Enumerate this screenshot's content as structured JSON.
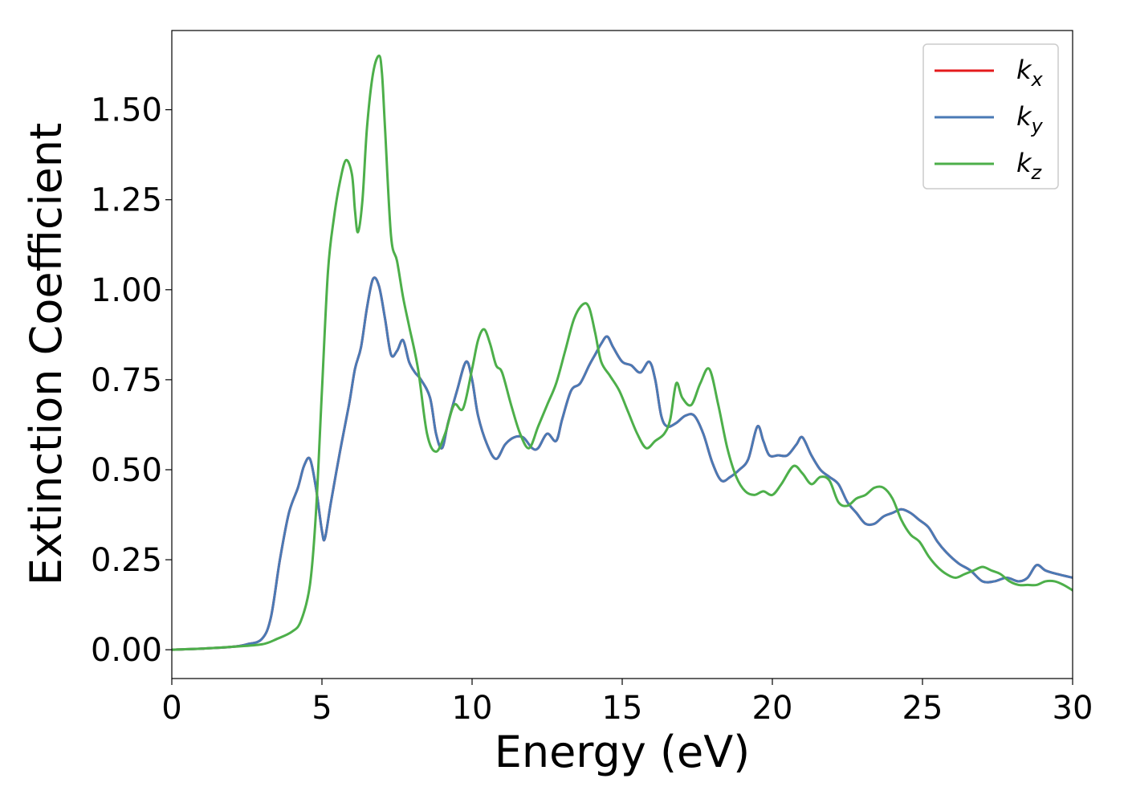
{
  "chart_data": {
    "type": "line",
    "xlabel": "Energy (eV)",
    "ylabel": "Extinction Coefficient",
    "xlim": [
      0,
      30
    ],
    "ylim": [
      -0.08,
      1.72
    ],
    "xticks": [
      "0",
      "5",
      "10",
      "15",
      "20",
      "25",
      "30"
    ],
    "yticks": [
      "0.00",
      "0.25",
      "0.50",
      "0.75",
      "1.00",
      "1.25",
      "1.50"
    ],
    "grid": false,
    "legend_position": "top-right",
    "series": [
      {
        "name": "k_x",
        "label_base": "k",
        "label_sub": "x",
        "color": "#e41a1c",
        "x": [
          0,
          1,
          2,
          2.5,
          3,
          3.3,
          3.6,
          3.9,
          4.2,
          4.4,
          4.6,
          4.8,
          5.0,
          5.1,
          5.3,
          5.6,
          5.9,
          6.1,
          6.3,
          6.5,
          6.7,
          6.9,
          7.1,
          7.3,
          7.5,
          7.7,
          7.9,
          8.1,
          8.3,
          8.6,
          8.8,
          9.0,
          9.2,
          9.5,
          9.8,
          10.0,
          10.2,
          10.5,
          10.8,
          11.1,
          11.4,
          11.7,
          12.0,
          12.2,
          12.5,
          12.8,
          13.0,
          13.3,
          13.6,
          13.9,
          14.1,
          14.3,
          14.5,
          14.7,
          15.0,
          15.3,
          15.6,
          15.9,
          16.1,
          16.3,
          16.5,
          16.8,
          17.1,
          17.4,
          17.7,
          18.0,
          18.3,
          18.6,
          18.9,
          19.2,
          19.5,
          19.7,
          19.9,
          20.2,
          20.5,
          20.8,
          21.0,
          21.3,
          21.6,
          21.9,
          22.2,
          22.5,
          22.8,
          23.1,
          23.4,
          23.7,
          24.0,
          24.3,
          24.6,
          24.9,
          25.2,
          25.5,
          25.8,
          26.2,
          26.6,
          27.0,
          27.4,
          27.8,
          28.2,
          28.5,
          28.8,
          29.1,
          29.5,
          30.0
        ],
        "values": [
          0.0,
          0.003,
          0.008,
          0.015,
          0.03,
          0.09,
          0.25,
          0.38,
          0.45,
          0.51,
          0.53,
          0.45,
          0.33,
          0.31,
          0.41,
          0.55,
          0.68,
          0.78,
          0.84,
          0.95,
          1.03,
          1.01,
          0.92,
          0.82,
          0.83,
          0.86,
          0.8,
          0.77,
          0.75,
          0.7,
          0.6,
          0.56,
          0.63,
          0.72,
          0.8,
          0.75,
          0.65,
          0.57,
          0.53,
          0.57,
          0.59,
          0.59,
          0.56,
          0.56,
          0.6,
          0.58,
          0.64,
          0.72,
          0.74,
          0.79,
          0.82,
          0.85,
          0.87,
          0.84,
          0.8,
          0.79,
          0.77,
          0.8,
          0.75,
          0.65,
          0.62,
          0.63,
          0.65,
          0.65,
          0.6,
          0.52,
          0.47,
          0.48,
          0.5,
          0.53,
          0.62,
          0.58,
          0.54,
          0.54,
          0.54,
          0.57,
          0.59,
          0.54,
          0.5,
          0.48,
          0.46,
          0.41,
          0.38,
          0.35,
          0.35,
          0.37,
          0.38,
          0.39,
          0.38,
          0.36,
          0.34,
          0.3,
          0.27,
          0.24,
          0.22,
          0.19,
          0.19,
          0.2,
          0.19,
          0.2,
          0.235,
          0.22,
          0.21,
          0.2
        ]
      },
      {
        "name": "k_y",
        "label_base": "k",
        "label_sub": "y",
        "color": "#4a7ab5",
        "x": [
          0,
          1,
          2,
          2.5,
          3,
          3.3,
          3.6,
          3.9,
          4.2,
          4.4,
          4.6,
          4.8,
          5.0,
          5.1,
          5.3,
          5.6,
          5.9,
          6.1,
          6.3,
          6.5,
          6.7,
          6.9,
          7.1,
          7.3,
          7.5,
          7.7,
          7.9,
          8.1,
          8.3,
          8.6,
          8.8,
          9.0,
          9.2,
          9.5,
          9.8,
          10.0,
          10.2,
          10.5,
          10.8,
          11.1,
          11.4,
          11.7,
          12.0,
          12.2,
          12.5,
          12.8,
          13.0,
          13.3,
          13.6,
          13.9,
          14.1,
          14.3,
          14.5,
          14.7,
          15.0,
          15.3,
          15.6,
          15.9,
          16.1,
          16.3,
          16.5,
          16.8,
          17.1,
          17.4,
          17.7,
          18.0,
          18.3,
          18.6,
          18.9,
          19.2,
          19.5,
          19.7,
          19.9,
          20.2,
          20.5,
          20.8,
          21.0,
          21.3,
          21.6,
          21.9,
          22.2,
          22.5,
          22.8,
          23.1,
          23.4,
          23.7,
          24.0,
          24.3,
          24.6,
          24.9,
          25.2,
          25.5,
          25.8,
          26.2,
          26.6,
          27.0,
          27.4,
          27.8,
          28.2,
          28.5,
          28.8,
          29.1,
          29.5,
          30.0
        ],
        "values": [
          0.0,
          0.003,
          0.008,
          0.015,
          0.03,
          0.09,
          0.25,
          0.38,
          0.45,
          0.51,
          0.53,
          0.45,
          0.33,
          0.31,
          0.41,
          0.55,
          0.68,
          0.78,
          0.84,
          0.95,
          1.03,
          1.01,
          0.92,
          0.82,
          0.83,
          0.86,
          0.8,
          0.77,
          0.75,
          0.7,
          0.6,
          0.56,
          0.63,
          0.72,
          0.8,
          0.75,
          0.65,
          0.57,
          0.53,
          0.57,
          0.59,
          0.59,
          0.56,
          0.56,
          0.6,
          0.58,
          0.64,
          0.72,
          0.74,
          0.79,
          0.82,
          0.85,
          0.87,
          0.84,
          0.8,
          0.79,
          0.77,
          0.8,
          0.75,
          0.65,
          0.62,
          0.63,
          0.65,
          0.65,
          0.6,
          0.52,
          0.47,
          0.48,
          0.5,
          0.53,
          0.62,
          0.58,
          0.54,
          0.54,
          0.54,
          0.57,
          0.59,
          0.54,
          0.5,
          0.48,
          0.46,
          0.41,
          0.38,
          0.35,
          0.35,
          0.37,
          0.38,
          0.39,
          0.38,
          0.36,
          0.34,
          0.3,
          0.27,
          0.24,
          0.22,
          0.19,
          0.19,
          0.2,
          0.19,
          0.2,
          0.235,
          0.22,
          0.21,
          0.2
        ]
      },
      {
        "name": "k_z",
        "label_base": "k",
        "label_sub": "z",
        "color": "#4daf4a",
        "x": [
          0,
          1,
          2,
          3,
          3.5,
          4.0,
          4.3,
          4.6,
          4.8,
          5.0,
          5.2,
          5.4,
          5.6,
          5.8,
          6.0,
          6.1,
          6.2,
          6.35,
          6.5,
          6.7,
          6.9,
          7.0,
          7.1,
          7.3,
          7.5,
          7.7,
          7.9,
          8.2,
          8.5,
          8.8,
          9.1,
          9.4,
          9.7,
          10.0,
          10.2,
          10.4,
          10.6,
          10.8,
          11.0,
          11.3,
          11.6,
          11.9,
          12.2,
          12.5,
          12.8,
          13.1,
          13.4,
          13.7,
          13.9,
          14.1,
          14.3,
          14.6,
          14.9,
          15.2,
          15.5,
          15.8,
          16.1,
          16.4,
          16.6,
          16.8,
          17.0,
          17.3,
          17.6,
          17.9,
          18.2,
          18.5,
          18.8,
          19.1,
          19.4,
          19.7,
          20.0,
          20.3,
          20.7,
          21.0,
          21.3,
          21.6,
          21.9,
          22.2,
          22.5,
          22.8,
          23.1,
          23.4,
          23.7,
          24.0,
          24.3,
          24.6,
          24.9,
          25.2,
          25.5,
          25.8,
          26.1,
          26.4,
          26.7,
          27.0,
          27.3,
          27.6,
          27.9,
          28.2,
          28.5,
          28.8,
          29.1,
          29.4,
          29.7,
          30.0
        ],
        "values": [
          0.0,
          0.003,
          0.008,
          0.015,
          0.03,
          0.05,
          0.08,
          0.18,
          0.38,
          0.72,
          1.05,
          1.2,
          1.3,
          1.36,
          1.32,
          1.22,
          1.16,
          1.25,
          1.45,
          1.6,
          1.65,
          1.6,
          1.45,
          1.15,
          1.08,
          0.98,
          0.9,
          0.78,
          0.6,
          0.55,
          0.6,
          0.68,
          0.67,
          0.78,
          0.86,
          0.89,
          0.85,
          0.79,
          0.77,
          0.68,
          0.6,
          0.56,
          0.62,
          0.68,
          0.74,
          0.83,
          0.92,
          0.96,
          0.95,
          0.88,
          0.8,
          0.76,
          0.72,
          0.66,
          0.6,
          0.56,
          0.58,
          0.6,
          0.64,
          0.74,
          0.7,
          0.68,
          0.74,
          0.78,
          0.68,
          0.56,
          0.48,
          0.44,
          0.43,
          0.44,
          0.43,
          0.46,
          0.51,
          0.49,
          0.46,
          0.48,
          0.47,
          0.41,
          0.4,
          0.42,
          0.43,
          0.45,
          0.45,
          0.42,
          0.36,
          0.32,
          0.3,
          0.26,
          0.23,
          0.21,
          0.2,
          0.21,
          0.22,
          0.23,
          0.22,
          0.21,
          0.19,
          0.18,
          0.18,
          0.18,
          0.19,
          0.19,
          0.18,
          0.165
        ]
      }
    ]
  }
}
